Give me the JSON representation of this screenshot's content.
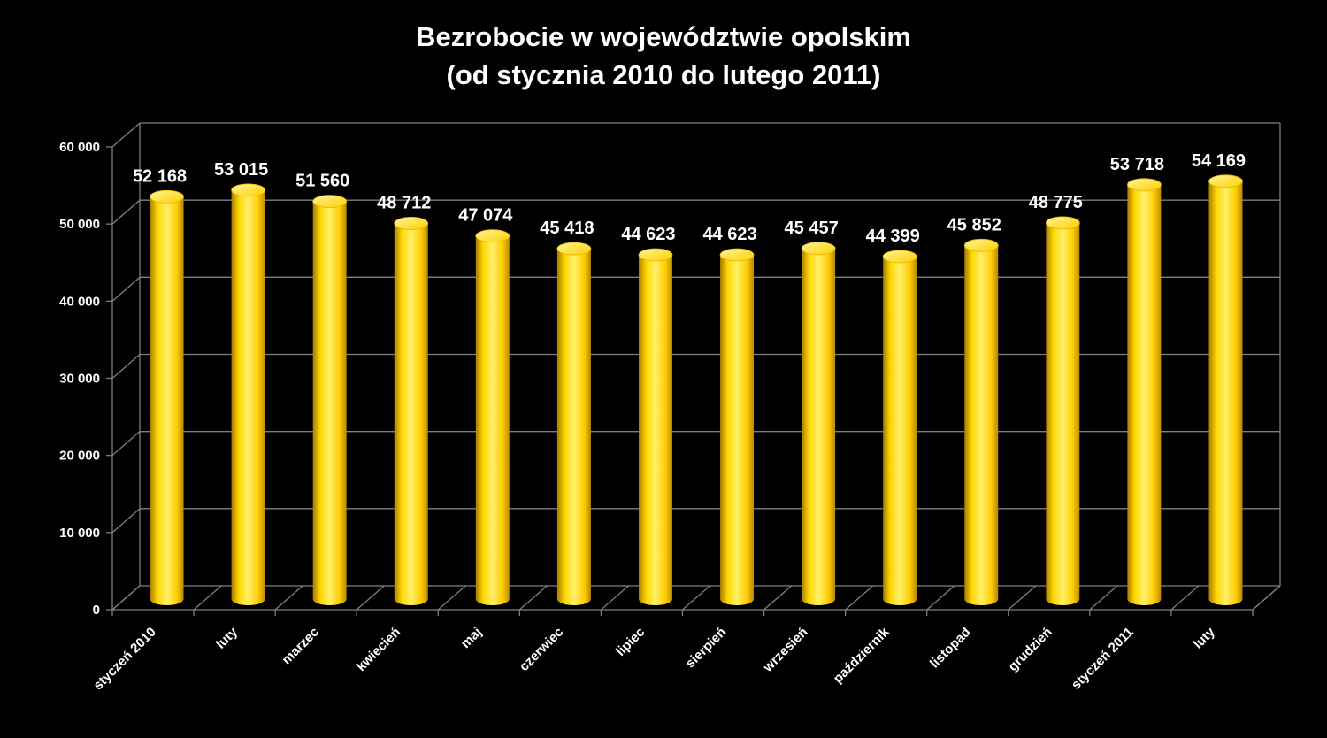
{
  "chart_data": {
    "type": "bar",
    "title": [
      "Bezrobocie w województwie opolskim",
      "(od stycznia 2010 do lutego 2011)"
    ],
    "categories": [
      "styczeń 2010",
      "luty",
      "marzec",
      "kwiecień",
      "maj",
      "czerwiec",
      "lipiec",
      "sierpień",
      "wrzesień",
      "październik",
      "listopad",
      "grudzień",
      "styczeń 2011",
      "luty"
    ],
    "values": [
      52168,
      53015,
      51560,
      48712,
      47074,
      45418,
      44623,
      44623,
      45457,
      44399,
      45852,
      48775,
      53718,
      54169
    ],
    "value_labels": [
      "52 168",
      "53 015",
      "51 560",
      "48 712",
      "47 074",
      "45 418",
      "44 623",
      "44 623",
      "45 457",
      "44 399",
      "45 852",
      "48 775",
      "53 718",
      "54 169"
    ],
    "y_ticks": [
      0,
      10000,
      20000,
      30000,
      40000,
      50000,
      60000
    ],
    "y_tick_labels": [
      "0",
      "10 000",
      "20 000",
      "30 000",
      "40 000",
      "50 000",
      "60 000"
    ],
    "ylim": [
      0,
      60000
    ],
    "grid": true,
    "legend": "none",
    "colors": {
      "background": "#000000",
      "bar": "#ffd700",
      "grid": "#7f7f7f",
      "text": "#ffffff"
    }
  }
}
